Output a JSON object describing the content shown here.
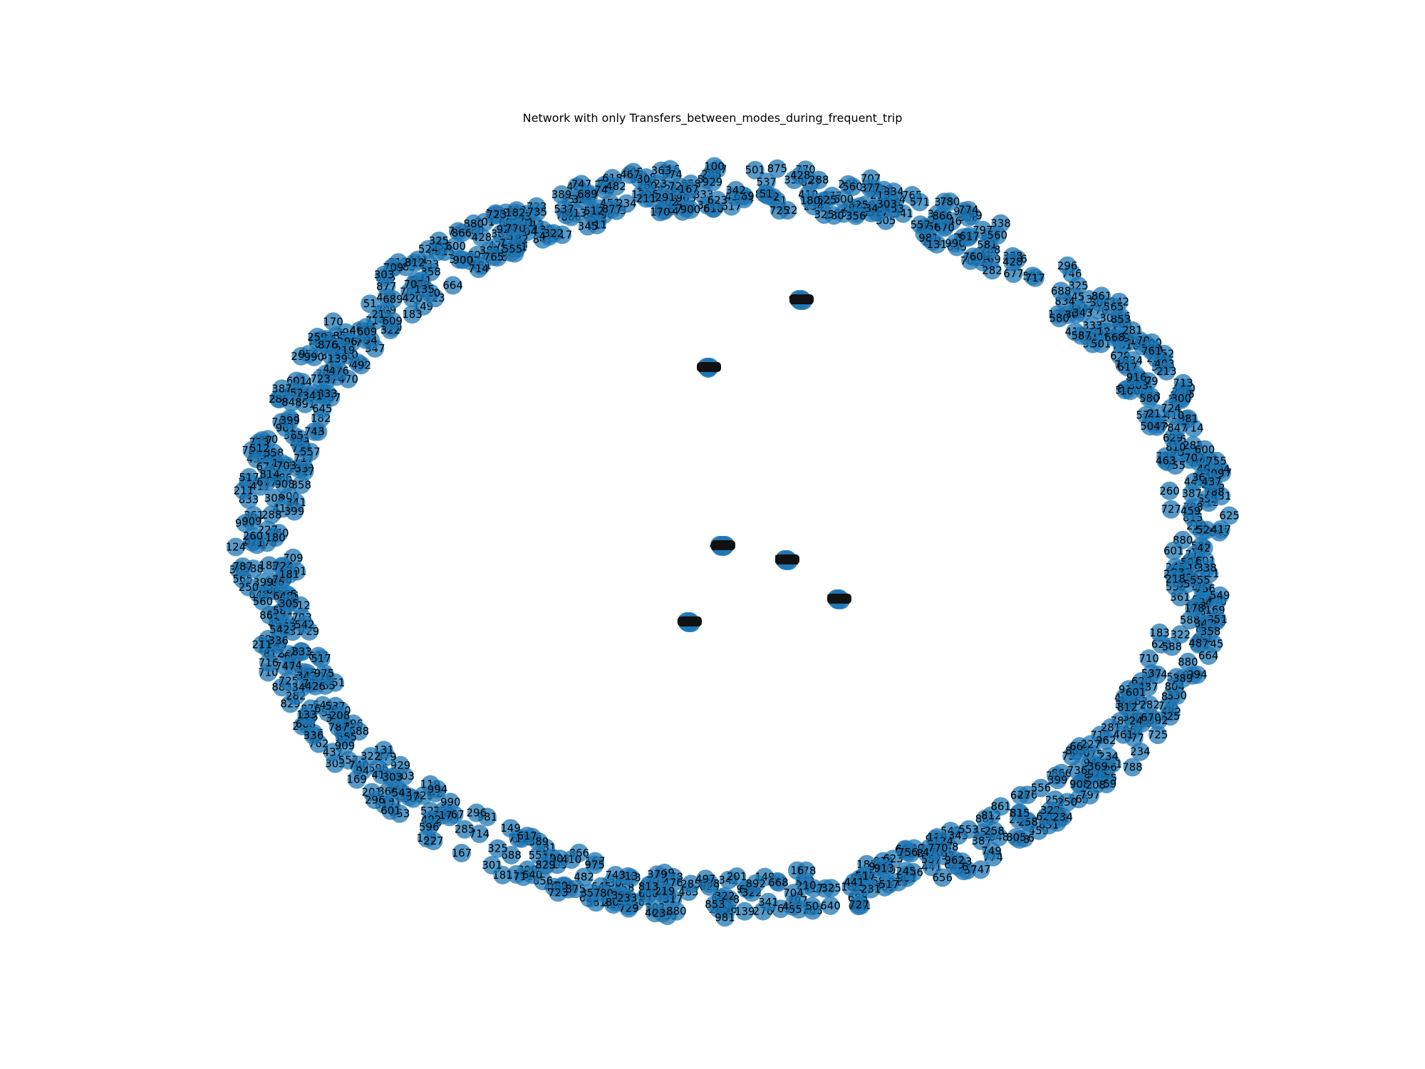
{
  "figure": {
    "title": "Network with only Transfers_between_modes_during_frequent_trip"
  },
  "colors": {
    "node": "#1f77b4",
    "label": "#000000",
    "background": "#ffffff"
  },
  "diagram": {
    "type": "network",
    "layout": "spring",
    "axes_visible": false,
    "node_count_estimate": 1000,
    "ring_labels": [
      "601",
      "317",
      "703",
      "347",
      "727",
      "833",
      "181",
      "958",
      "688",
      "746",
      "600",
      "810",
      "629",
      "94",
      "50",
      "16",
      "553",
      "169",
      "441",
      "834",
      "883",
      "916",
      "451",
      "656",
      "749",
      "770",
      "640",
      "276",
      "201",
      "851",
      "342",
      "42",
      "343",
      "620",
      "259",
      "903",
      "51",
      "487",
      "587",
      "476",
      "365",
      "668",
      "492",
      "211",
      "504",
      "124",
      "556",
      "464",
      "345",
      "625",
      "524",
      "725",
      "780",
      "133",
      "467",
      "765",
      "743",
      "688",
      "747",
      "707",
      "829",
      "866",
      "600",
      "555",
      "497",
      "774",
      "100",
      "285",
      "617",
      "300",
      "804",
      "962",
      "755",
      "181",
      "833",
      "389",
      "966",
      "508",
      "981",
      "714",
      "717",
      "710",
      "356",
      "306",
      "250",
      "756",
      "234",
      "149",
      "322",
      "291",
      "669",
      "389",
      "858",
      "426",
      "358",
      "178",
      "322",
      "258",
      "674",
      "325",
      "517",
      "723",
      "410",
      "580",
      "709",
      "463",
      "322",
      "303",
      "260",
      "379",
      "557",
      "361",
      "805",
      "877",
      "724",
      "729",
      "296",
      "182",
      "645",
      "736",
      "170",
      "716",
      "234",
      "183",
      "363",
      "848",
      "119",
      "847",
      "990",
      "853",
      "961",
      "861",
      "664",
      "900",
      "994",
      "588",
      "609",
      "686",
      "601",
      "787",
      "341",
      "233",
      "581",
      "399",
      "410",
      "245",
      "210",
      "282",
      "338",
      "139",
      "857",
      "648",
      "875",
      "713",
      "913",
      "623",
      "296",
      "876",
      "788",
      "135",
      "403",
      "218",
      "512",
      "723",
      "908",
      "387",
      "761",
      "231",
      "866",
      "219",
      "677",
      "909",
      "131",
      "208",
      "303",
      "814",
      "770",
      "815",
      "797",
      "812",
      "617",
      "336",
      "704",
      "281",
      "975",
      "813",
      "565",
      "880",
      "213",
      "555",
      "301",
      "302",
      "325",
      "437",
      "428",
      "399",
      "549",
      "482",
      "557",
      "211",
      "305",
      "537",
      "543",
      "227",
      "167",
      "288",
      "180",
      "560",
      "670",
      "892",
      "501",
      "524",
      "618",
      "333",
      "453",
      "437",
      "381",
      "596",
      "740",
      "752",
      "461",
      "285",
      "330",
      "571",
      "369",
      "459",
      "542",
      "735",
      "609",
      "901",
      "417",
      "689",
      "123",
      "591",
      "420",
      "762",
      "341",
      "806",
      "517",
      "377",
      "234",
      "601",
      "470",
      "390",
      "711",
      "929",
      "308"
    ],
    "inner_clusters": [
      {
        "id": "cluster-a",
        "labels": [
          "981",
          "594",
          "348",
          "802"
        ]
      },
      {
        "id": "cluster-b",
        "labels": [
          "223",
          "918",
          "675"
        ]
      },
      {
        "id": "cluster-c",
        "labels": [
          "412",
          "887",
          "330",
          "619",
          "754"
        ]
      },
      {
        "id": "cluster-d",
        "labels": [
          "506",
          "273",
          "441",
          "832"
        ]
      },
      {
        "id": "cluster-e",
        "labels": [
          "159",
          "980",
          "367",
          "724"
        ]
      },
      {
        "id": "cluster-f",
        "labels": [
          "612",
          "845",
          "293",
          "578"
        ]
      }
    ]
  }
}
